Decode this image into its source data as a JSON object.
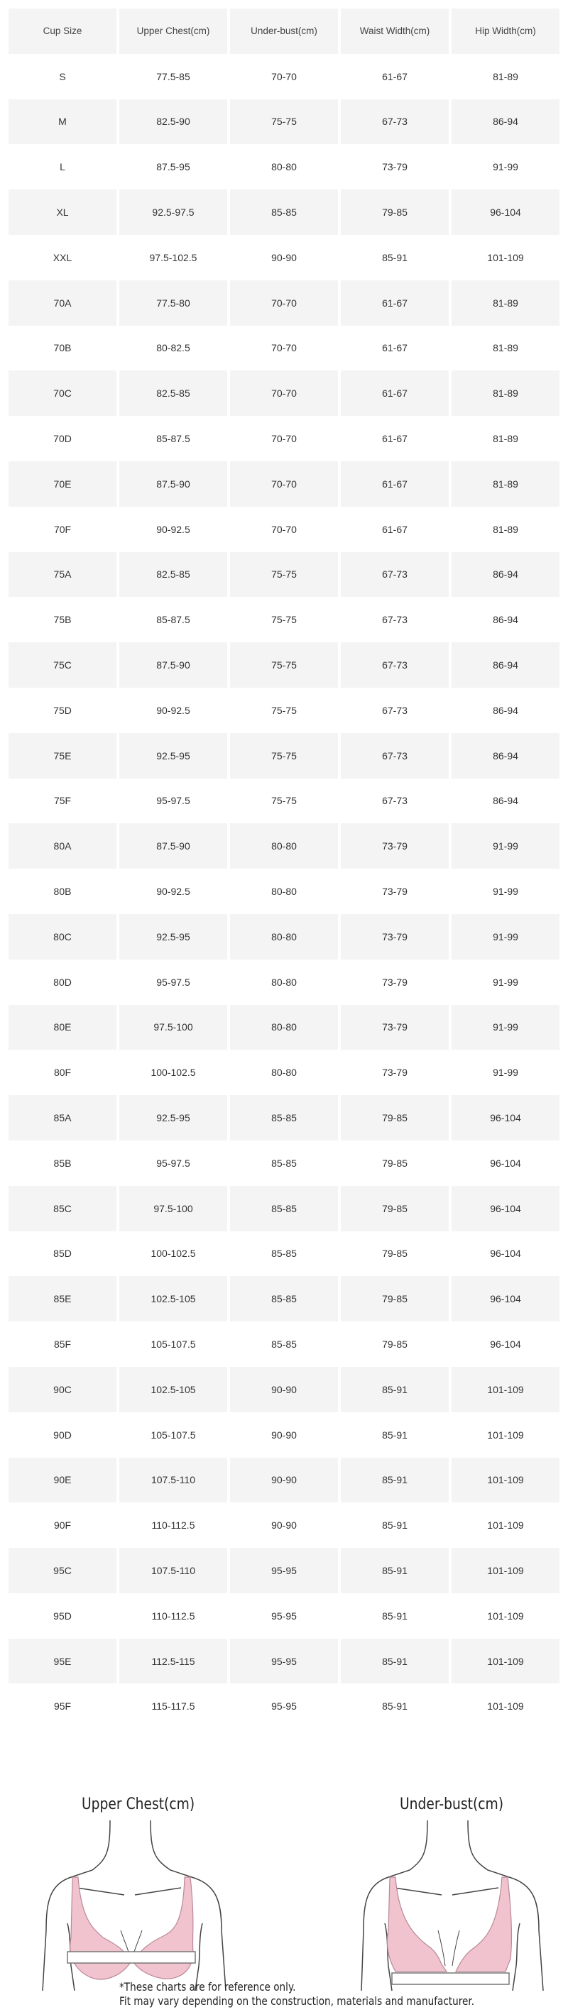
{
  "table": {
    "headers": [
      "Cup Size",
      "Upper Chest(cm)",
      "Under-bust(cm)",
      "Waist Width(cm)",
      "Hip Width(cm)"
    ],
    "rows": [
      [
        "S",
        "77.5-85",
        "70-70",
        "61-67",
        "81-89"
      ],
      [
        "M",
        "82.5-90",
        "75-75",
        "67-73",
        "86-94"
      ],
      [
        "L",
        "87.5-95",
        "80-80",
        "73-79",
        "91-99"
      ],
      [
        "XL",
        "92.5-97.5",
        "85-85",
        "79-85",
        "96-104"
      ],
      [
        "XXL",
        "97.5-102.5",
        "90-90",
        "85-91",
        "101-109"
      ],
      [
        "70A",
        "77.5-80",
        "70-70",
        "61-67",
        "81-89"
      ],
      [
        "70B",
        "80-82.5",
        "70-70",
        "61-67",
        "81-89"
      ],
      [
        "70C",
        "82.5-85",
        "70-70",
        "61-67",
        "81-89"
      ],
      [
        "70D",
        "85-87.5",
        "70-70",
        "61-67",
        "81-89"
      ],
      [
        "70E",
        "87.5-90",
        "70-70",
        "61-67",
        "81-89"
      ],
      [
        "70F",
        "90-92.5",
        "70-70",
        "61-67",
        "81-89"
      ],
      [
        "75A",
        "82.5-85",
        "75-75",
        "67-73",
        "86-94"
      ],
      [
        "75B",
        "85-87.5",
        "75-75",
        "67-73",
        "86-94"
      ],
      [
        "75C",
        "87.5-90",
        "75-75",
        "67-73",
        "86-94"
      ],
      [
        "75D",
        "90-92.5",
        "75-75",
        "67-73",
        "86-94"
      ],
      [
        "75E",
        "92.5-95",
        "75-75",
        "67-73",
        "86-94"
      ],
      [
        "75F",
        "95-97.5",
        "75-75",
        "67-73",
        "86-94"
      ],
      [
        "80A",
        "87.5-90",
        "80-80",
        "73-79",
        "91-99"
      ],
      [
        "80B",
        "90-92.5",
        "80-80",
        "73-79",
        "91-99"
      ],
      [
        "80C",
        "92.5-95",
        "80-80",
        "73-79",
        "91-99"
      ],
      [
        "80D",
        "95-97.5",
        "80-80",
        "73-79",
        "91-99"
      ],
      [
        "80E",
        "97.5-100",
        "80-80",
        "73-79",
        "91-99"
      ],
      [
        "80F",
        "100-102.5",
        "80-80",
        "73-79",
        "91-99"
      ],
      [
        "85A",
        "92.5-95",
        "85-85",
        "79-85",
        "96-104"
      ],
      [
        "85B",
        "95-97.5",
        "85-85",
        "79-85",
        "96-104"
      ],
      [
        "85C",
        "97.5-100",
        "85-85",
        "79-85",
        "96-104"
      ],
      [
        "85D",
        "100-102.5",
        "85-85",
        "79-85",
        "96-104"
      ],
      [
        "85E",
        "102.5-105",
        "85-85",
        "79-85",
        "96-104"
      ],
      [
        "85F",
        "105-107.5",
        "85-85",
        "79-85",
        "96-104"
      ],
      [
        "90C",
        "102.5-105",
        "90-90",
        "85-91",
        "101-109"
      ],
      [
        "90D",
        "105-107.5",
        "90-90",
        "85-91",
        "101-109"
      ],
      [
        "90E",
        "107.5-110",
        "90-90",
        "85-91",
        "101-109"
      ],
      [
        "90F",
        "110-112.5",
        "90-90",
        "85-91",
        "101-109"
      ],
      [
        "95C",
        "107.5-110",
        "95-95",
        "85-91",
        "101-109"
      ],
      [
        "95D",
        "110-112.5",
        "95-95",
        "85-91",
        "101-109"
      ],
      [
        "95E",
        "112.5-115",
        "95-95",
        "85-91",
        "101-109"
      ],
      [
        "95F",
        "115-117.5",
        "95-95",
        "85-91",
        "101-109"
      ]
    ]
  },
  "illustrations": {
    "upper_chest_title": "Upper Chest(cm)",
    "under_bust_title": "Under-bust(cm)",
    "bra_color": "#f1c3cf",
    "note_line1": "*These charts are for reference only.",
    "note_line2": "Fit may vary depending on the construction, materials and manufacturer."
  }
}
